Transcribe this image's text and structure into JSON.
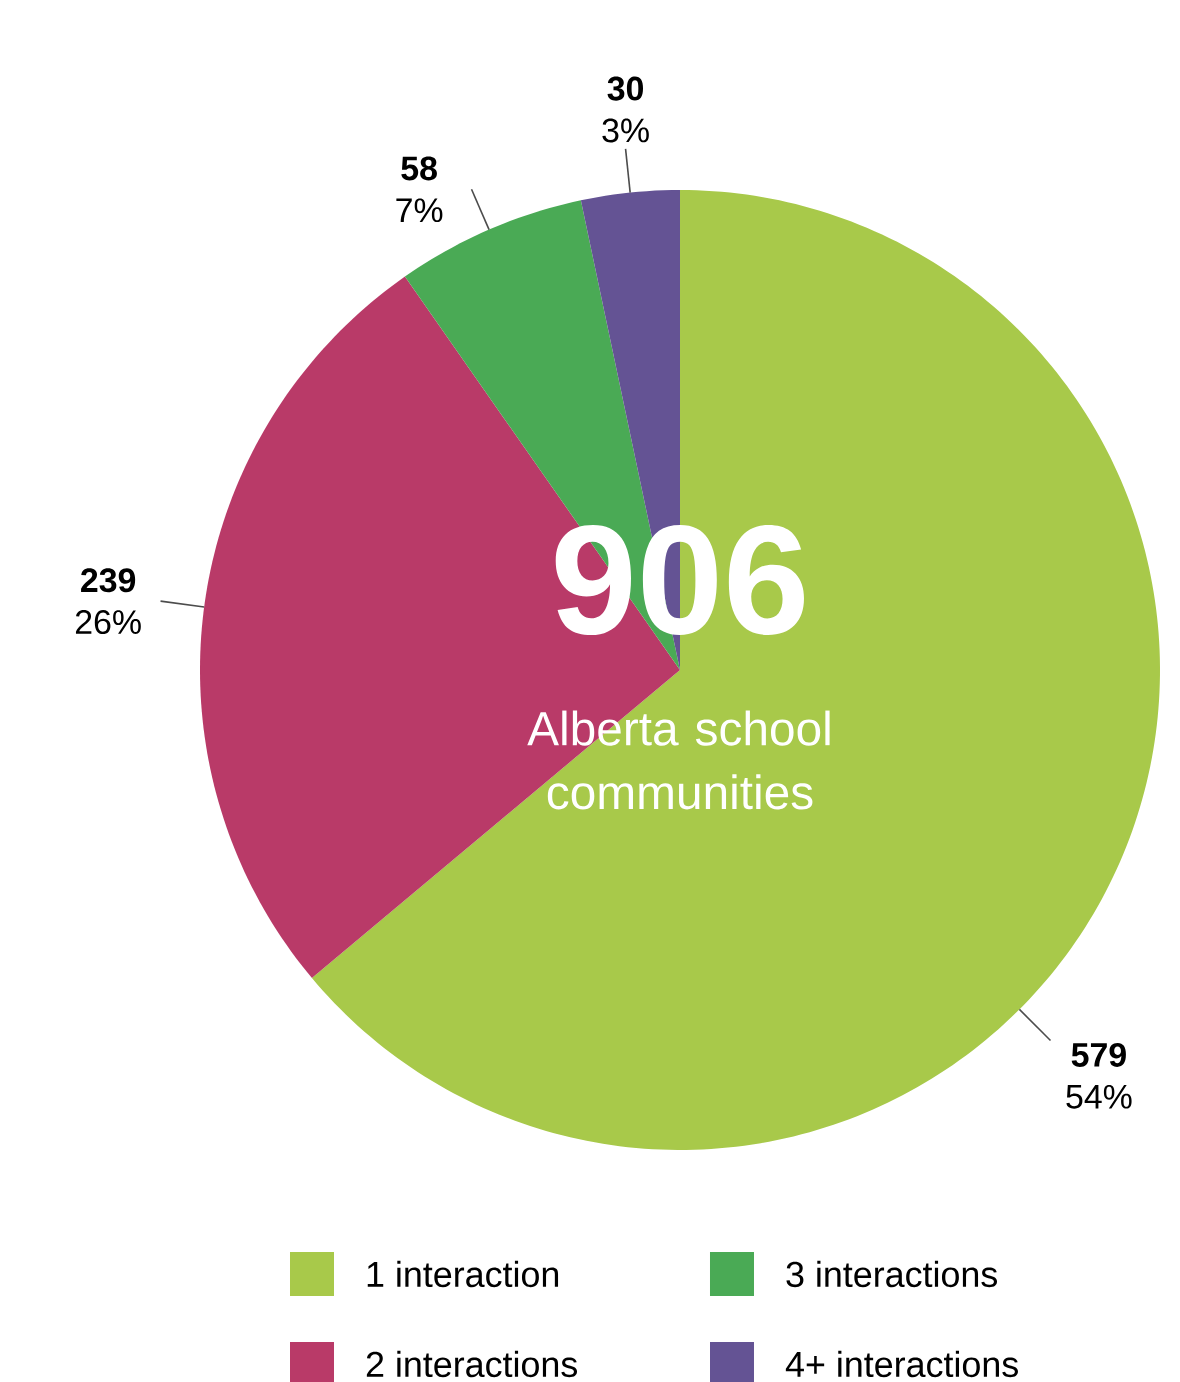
{
  "chart_data": {
    "type": "pie",
    "categories": [
      "1 interaction",
      "2 interactions",
      "3 interactions",
      "4+ interactions"
    ],
    "values": [
      579,
      239,
      58,
      30
    ],
    "colors": [
      "#a8c94a",
      "#b93a68",
      "#4aaa55",
      "#645394"
    ],
    "value_labels": [
      "**579** 54%",
      "**239** 26%",
      "**58** 7%",
      "**30** 3%"
    ],
    "annotations": [
      "906",
      "Alberta school communities"
    ],
    "legend": "bottom"
  }
}
